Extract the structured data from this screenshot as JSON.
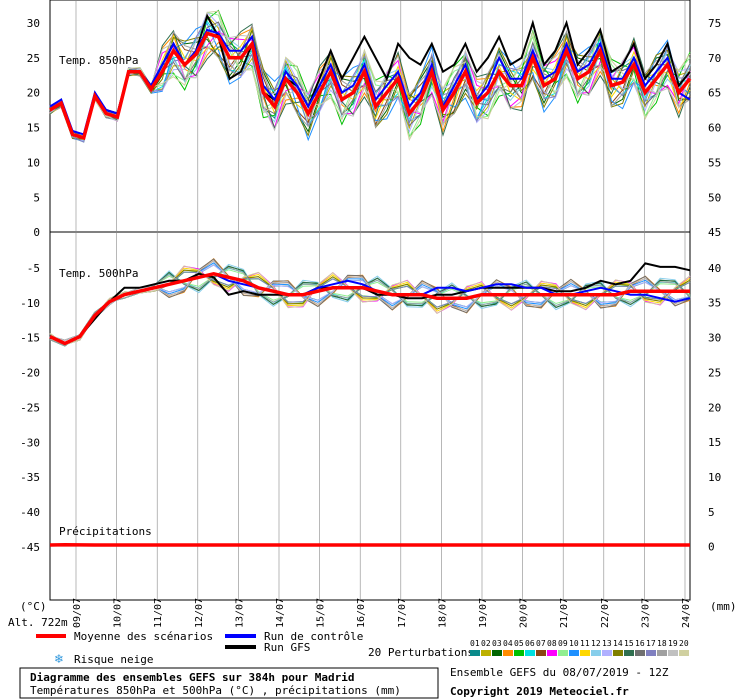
{
  "chart_data": {
    "type": "line",
    "title": "Diagramme des ensembles GEFS sur 384h pour Madrid",
    "subtitle": "Températures 850hPa et 500hPa (°C) , précipitations (mm)",
    "dates": [
      "09/07",
      "10/07",
      "11/07",
      "12/07",
      "13/07",
      "14/07",
      "15/07",
      "16/07",
      "17/07",
      "18/07",
      "19/07",
      "20/07",
      "21/07",
      "22/07",
      "23/07",
      "24/07"
    ],
    "left_axis_ticks": [
      "30",
      "25",
      "20",
      "15",
      "10",
      "5",
      "0",
      "-5",
      "-10",
      "-15",
      "-20",
      "-25",
      "-30",
      "-35",
      "-40",
      "-45"
    ],
    "right_axis_ticks": [
      "75",
      "70",
      "65",
      "60",
      "55",
      "50",
      "45",
      "40",
      "35",
      "30",
      "25",
      "20",
      "15",
      "10",
      "5",
      "0"
    ],
    "left_unit": "(°C)",
    "right_unit": "(mm)",
    "altitude": "Alt. 722m",
    "panels": [
      {
        "label": "Temp. 850hPa",
        "ylim": [
          0,
          33
        ],
        "series": [
          {
            "name": "Moyenne des scénarios",
            "color": "#ff0000",
            "values": [
              17.5,
              18.5,
              14,
              13.5,
              19.5,
              17,
              16.5,
              23,
              23,
              20.5,
              23,
              26,
              24,
              25.5,
              28.5,
              28,
              25,
              25,
              27,
              20,
              18,
              22,
              20,
              17,
              20,
              23,
              19,
              20,
              23,
              18,
              20,
              22,
              17,
              19,
              23,
              17.5,
              20,
              23,
              18.5,
              20,
              23,
              21,
              21,
              25,
              21,
              22,
              26,
              22,
              23,
              26,
              21,
              21.5,
              24,
              20,
              22,
              24,
              20,
              22
            ]
          },
          {
            "name": "Run de contrôle",
            "color": "#0000ff",
            "values": [
              18,
              19,
              14.5,
              14,
              20,
              17.5,
              17,
              23,
              23,
              21,
              24,
              27,
              24,
              26,
              29,
              28.5,
              26,
              26,
              28,
              21,
              19,
              23,
              21,
              18,
              21,
              24,
              20,
              21,
              24,
              19,
              21,
              23,
              18,
              20,
              24,
              18,
              21,
              24,
              19,
              21,
              25,
              22,
              22,
              26,
              22,
              23,
              27,
              23,
              24,
              27,
              22,
              22,
              25,
              21,
              23,
              25,
              20,
              19
            ]
          },
          {
            "name": "Run GFS",
            "color": "#000000",
            "values": [
              17.5,
              18.5,
              14,
              13.5,
              19.5,
              17.5,
              17,
              23,
              23,
              21,
              24,
              27,
              24,
              26,
              31,
              28,
              22,
              23,
              27,
              20,
              19,
              22,
              21,
              18,
              22,
              26,
              22,
              25,
              28,
              25,
              22,
              27,
              25,
              24,
              27,
              23,
              24,
              27,
              23,
              25,
              28,
              24,
              25,
              30,
              24,
              26,
              30,
              24,
              26,
              29,
              23,
              24,
              27,
              22,
              24,
              27,
              21,
              23
            ]
          }
        ]
      },
      {
        "label": "Temp. 500hPa",
        "ylim": [
          -45,
          0
        ],
        "series": [
          {
            "name": "Moyenne des scénarios",
            "color": "#ff0000",
            "values": [
              -15,
              -16,
              -15,
              -12,
              -10,
              -9,
              -8.5,
              -8,
              -7.5,
              -7,
              -6.5,
              -6,
              -6.5,
              -7,
              -8,
              -8.5,
              -9,
              -9,
              -8.5,
              -8,
              -8,
              -8,
              -8.5,
              -9,
              -9,
              -9,
              -9.5,
              -9.5,
              -9.5,
              -9,
              -9,
              -9,
              -9,
              -9,
              -9,
              -9,
              -9,
              -9,
              -9,
              -8.5,
              -8.5,
              -8.5,
              -8.5,
              -8.5
            ]
          },
          {
            "name": "Run de contrôle",
            "color": "#0000ff",
            "values": [
              -15,
              -16,
              -15,
              -12,
              -10,
              -9,
              -8.5,
              -8,
              -7.5,
              -7,
              -6.5,
              -6,
              -7,
              -7.5,
              -8,
              -8.5,
              -9,
              -9,
              -8,
              -7.5,
              -7,
              -7.5,
              -8.5,
              -9,
              -9,
              -9,
              -8,
              -8,
              -8.5,
              -8,
              -7.5,
              -7.5,
              -8,
              -8,
              -9,
              -9,
              -8.5,
              -8,
              -8.5,
              -9,
              -9,
              -9.5,
              -10,
              -9.5
            ]
          },
          {
            "name": "Run GFS",
            "color": "#000000",
            "values": [
              -15,
              -16,
              -15,
              -12.5,
              -10,
              -8,
              -8,
              -7.5,
              -7,
              -7,
              -6,
              -6.5,
              -9,
              -8.5,
              -9,
              -9,
              -9,
              -9,
              -8,
              -8,
              -8,
              -8,
              -9,
              -9,
              -9.5,
              -9.5,
              -9,
              -9,
              -8.5,
              -8,
              -8,
              -8,
              -8,
              -8,
              -8.5,
              -8.5,
              -8,
              -7,
              -7.5,
              -7,
              -4.5,
              -5,
              -5,
              -5.5
            ]
          }
        ]
      },
      {
        "label": "Précipitations",
        "ylim": [
          0,
          45
        ],
        "series": [
          {
            "name": "Moyenne des scénarios",
            "color": "#ff0000",
            "values": [
              0,
              0.5,
              0.2,
              0,
              0,
              0,
              0,
              0,
              0,
              0,
              0,
              0,
              0,
              0,
              0,
              0,
              0,
              0,
              0,
              0,
              0,
              0,
              0,
              0,
              0,
              0,
              0,
              0,
              0,
              0,
              0,
              0,
              0,
              0,
              0,
              0,
              0,
              0,
              0,
              0,
              0,
              0,
              0,
              0
            ]
          }
        ]
      }
    ],
    "legend": {
      "mean": "Moyenne des scénarios",
      "control": "Run de contrôle",
      "gfs": "Run GFS",
      "snow": "Risque neige",
      "perturbations": "20 Perturbations",
      "perturbation_numbers": [
        "01",
        "02",
        "03",
        "04",
        "05",
        "06",
        "07",
        "08",
        "09",
        "10",
        "11",
        "12",
        "13",
        "14",
        "15",
        "16",
        "17",
        "18",
        "19",
        "20"
      ],
      "perturbation_colors": [
        "#0a8a8a",
        "#bdb000",
        "#006400",
        "#ff8c00",
        "#00c000",
        "#00e0e0",
        "#8b4513",
        "#ff00ff",
        "#90ee90",
        "#1e90ff",
        "#ffd700",
        "#87ceeb",
        "#b0b0ff",
        "#808000",
        "#2f6f4f",
        "#707070",
        "#8080c0",
        "#a0a0a0",
        "#c0c0c0",
        "#d0d0a0"
      ]
    },
    "footer": {
      "ensemble": "Ensemble GEFS du 08/07/2019 - 12Z",
      "copyright": "Copyright 2019 Meteociel.fr"
    }
  }
}
